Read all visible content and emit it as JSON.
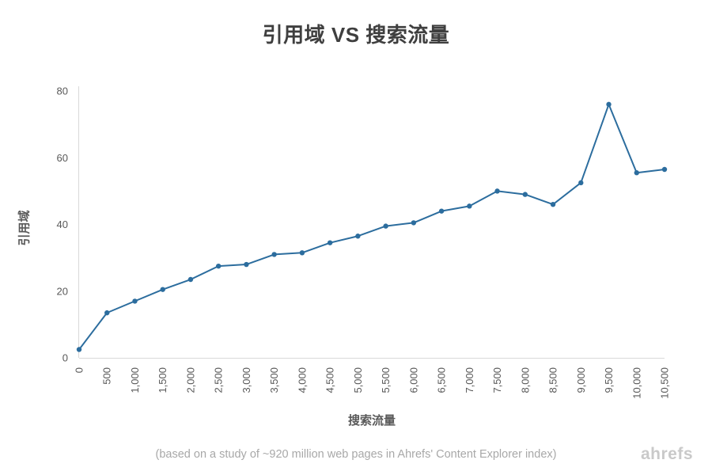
{
  "footer": {
    "note": "(based on a study of ~920 million web pages in Ahrefs' Content Explorer index)",
    "brand": "ahrefs"
  },
  "chart_data": {
    "type": "line",
    "title": "引用域 VS 搜索流量",
    "xlabel": "搜索流量",
    "ylabel": "引用域",
    "xlim": [
      0,
      10500
    ],
    "ylim": [
      0,
      80
    ],
    "y_ticks": [
      0,
      20,
      40,
      60,
      80
    ],
    "x": [
      0,
      500,
      1000,
      1500,
      2000,
      2500,
      3000,
      3500,
      4000,
      4500,
      5000,
      5500,
      6000,
      6500,
      7000,
      7500,
      8000,
      8500,
      9000,
      9500,
      10000,
      10500
    ],
    "x_tick_labels": [
      "0",
      "500",
      "1,000",
      "1,500",
      "2,000",
      "2,500",
      "3,000",
      "3,500",
      "4,000",
      "4,500",
      "5,000",
      "5,500",
      "6,000",
      "6,500",
      "7,000",
      "7,500",
      "8,000",
      "8,500",
      "9,000",
      "9,500",
      "10,000",
      "10,500"
    ],
    "y": [
      2.5,
      13.5,
      17,
      20.5,
      23.5,
      27.5,
      28,
      31,
      31.5,
      34.5,
      36.5,
      39.5,
      40.5,
      44,
      45.5,
      50,
      49,
      46,
      52.5,
      76,
      55.5,
      56.5
    ],
    "line_color": "#2c6d9e",
    "marker": "circle",
    "grid": false,
    "legend": "none",
    "axis_color": "#d9d9d9"
  }
}
